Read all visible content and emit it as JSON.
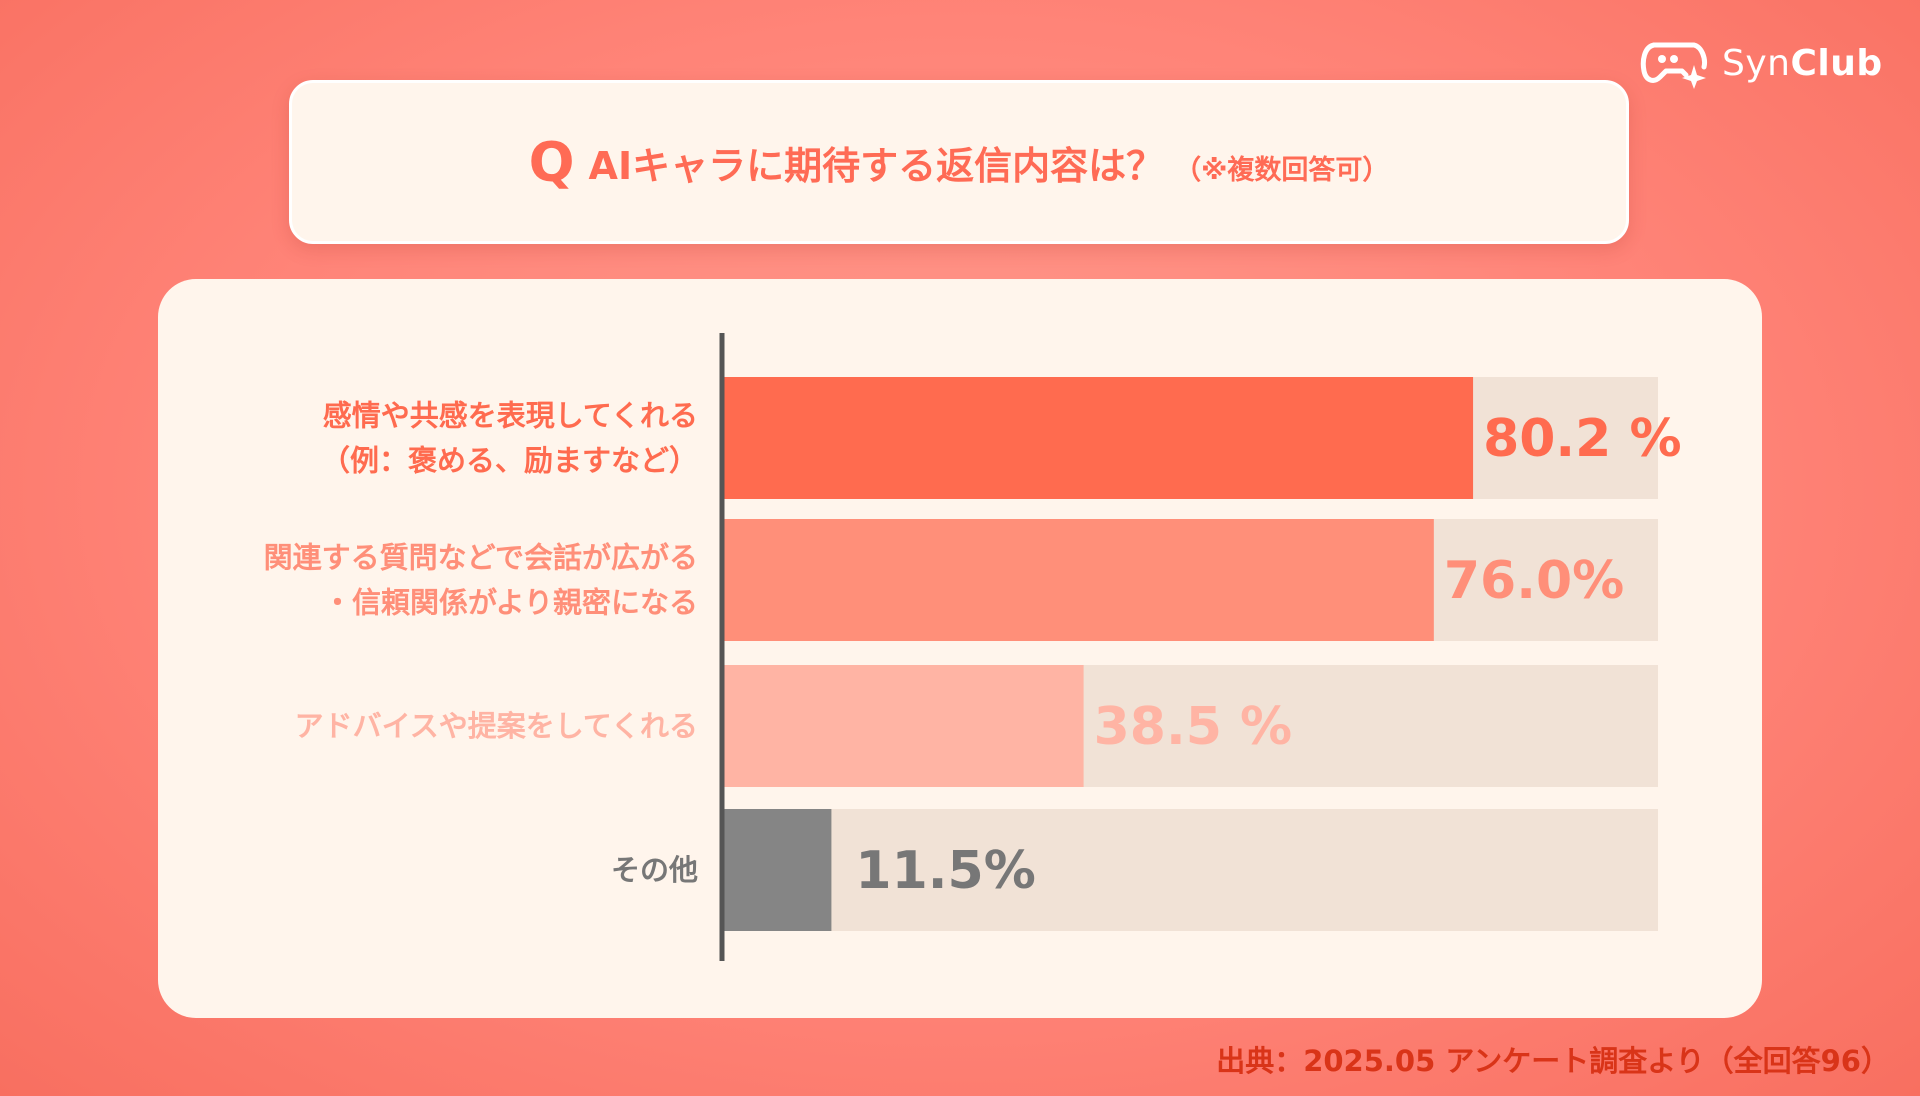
{
  "logo": {
    "text_light": "Syn",
    "text_bold": "Club",
    "icon": "game-controller-sparkle-icon"
  },
  "question": {
    "mark": "Q",
    "text": "AIキャラに期待する返信内容は？",
    "note": "（※複数回答可）"
  },
  "chart_data": {
    "type": "bar",
    "orientation": "horizontal",
    "xlim": [
      0,
      100
    ],
    "categories": [
      [
        "感情や共感を表現してくれる",
        "（例：褒める、励ますなど）"
      ],
      [
        "関連する質問などで会話が広がる",
        "・信頼関係がより親密になる"
      ],
      [
        "アドバイスや提案をしてくれる"
      ],
      [
        "その他"
      ]
    ],
    "values": [
      80.2,
      76.0,
      38.5,
      11.5
    ],
    "value_labels": [
      "80.2 %",
      "76.0%",
      "38.5  %",
      "11.5%"
    ],
    "bar_colors": [
      "#ff6b4f",
      "#ff8f79",
      "#ffb4a4",
      "#858585"
    ],
    "label_colors": [
      "#ff6b4f",
      "#ff8f79",
      "#ffb4a4",
      "#777777"
    ],
    "track_color": "#f1e2d6",
    "axis_color": "#555555"
  },
  "source": "出典：2025.05 アンケート調査より（全回答96）"
}
